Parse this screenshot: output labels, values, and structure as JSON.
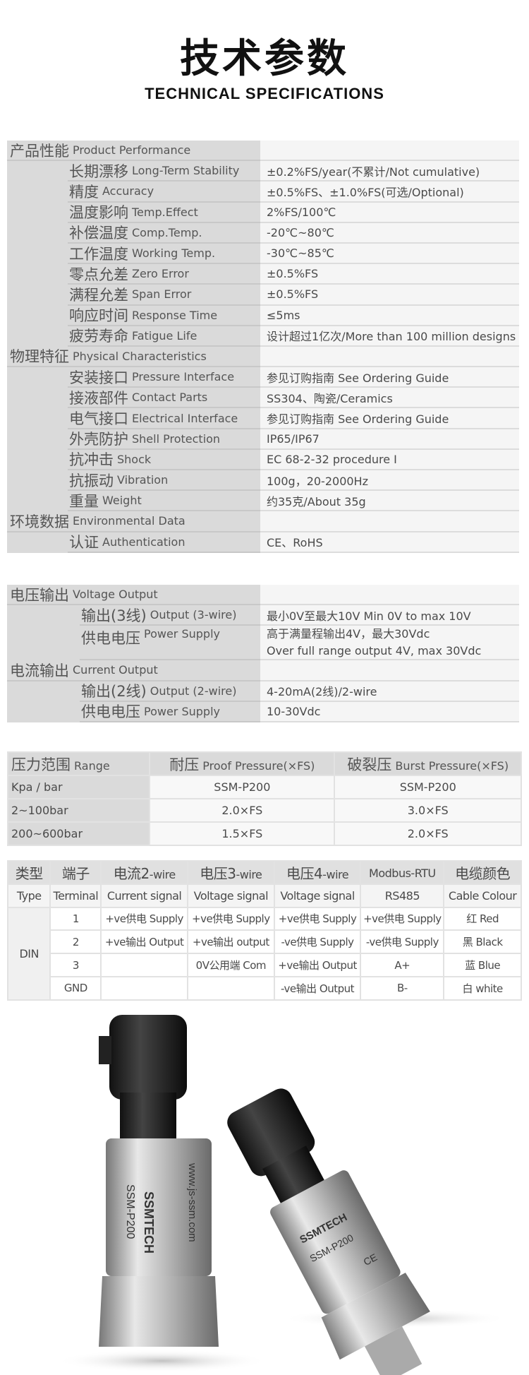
{
  "header": {
    "title": "技术参数",
    "subtitle": "TECHNICAL SPECIFICATIONS"
  },
  "spec": [
    {
      "type": "sec",
      "cn": "产品性能",
      "en": "Product Performance",
      "value": ""
    },
    {
      "type": "sub",
      "cn": "长期漂移",
      "en": "Long-Term Stability",
      "value": "±0.2%FS/year(不累计/Not cumulative)"
    },
    {
      "type": "sub",
      "cn": "精度",
      "en": "Accuracy",
      "value": "±0.5%FS、±1.0%FS(可选/Optional)"
    },
    {
      "type": "sub",
      "cn": "温度影响",
      "en": "Temp.Effect",
      "value": "2%FS/100℃"
    },
    {
      "type": "sub",
      "cn": "补偿温度",
      "en": "Comp.Temp.",
      "value": "-20℃~80℃"
    },
    {
      "type": "sub",
      "cn": "工作温度",
      "en": "Working Temp.",
      "value": "-30℃~85℃"
    },
    {
      "type": "sub",
      "cn": "零点允差",
      "en": "Zero Error",
      "value": "±0.5%FS"
    },
    {
      "type": "sub",
      "cn": "满程允差",
      "en": "Span Error",
      "value": "±0.5%FS"
    },
    {
      "type": "sub",
      "cn": "响应时间",
      "en": "Response Time",
      "value": "≤5ms"
    },
    {
      "type": "sub",
      "cn": "疲劳寿命",
      "en": "Fatigue Life",
      "value": "设计超过1亿次/More than 100 million designs"
    },
    {
      "type": "sec",
      "cn": "物理特征",
      "en": "Physical Characteristics",
      "value": ""
    },
    {
      "type": "sub",
      "cn": "安装接口",
      "en": "Pressure Interface",
      "value": "参见订购指南 See Ordering Guide"
    },
    {
      "type": "sub",
      "cn": "接液部件",
      "en": "Contact Parts",
      "value": "SS304、陶瓷/Ceramics"
    },
    {
      "type": "sub",
      "cn": "电气接口",
      "en": "Electrical Interface",
      "value": "参见订购指南 See Ordering Guide"
    },
    {
      "type": "sub",
      "cn": "外壳防护",
      "en": "Shell Protection",
      "value": "IP65/IP67"
    },
    {
      "type": "sub",
      "cn": "抗冲击",
      "en": "Shock",
      "value": "EC 68-2-32 procedure I"
    },
    {
      "type": "sub",
      "cn": "抗振动",
      "en": "Vibration",
      "value": "100g，20-2000Hz"
    },
    {
      "type": "sub",
      "cn": "重量",
      "en": "Weight",
      "value": "约35克/About 35g"
    },
    {
      "type": "sec",
      "cn": "环境数据",
      "en": "Environmental Data",
      "value": ""
    },
    {
      "type": "sub",
      "cn": "认证",
      "en": "Authentication",
      "value": "CE、RoHS"
    }
  ],
  "output": [
    {
      "type": "sec",
      "cn": "电压输出",
      "en": "Voltage Output",
      "value": ""
    },
    {
      "type": "sub",
      "cn": "输出(3线)",
      "en": "Output (3-wire)",
      "value": "最小0V至最大10V Min 0V to max 10V"
    },
    {
      "type": "sub tall",
      "cn": "供电电压",
      "en": "Power Supply",
      "value": "高于满量程输出4V，最大30Vdc",
      "value2": "Over full range output 4V, max 30Vdc"
    },
    {
      "type": "sec",
      "cn": "电流输出",
      "en": "Current Output",
      "value": ""
    },
    {
      "type": "sub",
      "cn": "输出(2线)",
      "en": "Output (2-wire)",
      "value": "4-20mA(2线)/2-wire"
    },
    {
      "type": "sub",
      "cn": "供电电压",
      "en": "Power Supply",
      "value": "10-30Vdc"
    }
  ],
  "pressure": {
    "header": [
      {
        "cn": "压力范围",
        "en": "Range"
      },
      {
        "cn": "耐压",
        "en": "Proof Pressure(×FS)"
      },
      {
        "cn": "破裂压",
        "en": "Burst Pressure(×FS)"
      }
    ],
    "rows": [
      [
        "Kpa / bar",
        "SSM-P200",
        "SSM-P200"
      ],
      [
        "2~100bar",
        "2.0×FS",
        "3.0×FS"
      ],
      [
        "200~600bar",
        "1.5×FS",
        "2.0×FS"
      ]
    ]
  },
  "wiring": {
    "header": [
      {
        "cn": "类型",
        "w": ""
      },
      {
        "cn": "端子",
        "w": ""
      },
      {
        "cn": "电流2",
        "w": "-wire"
      },
      {
        "cn": "电压3",
        "w": "-wire"
      },
      {
        "cn": "电压4",
        "w": "-wire"
      },
      {
        "cn": "",
        "w": "Modbus-RTU"
      },
      {
        "cn": "电缆颜色",
        "w": ""
      }
    ],
    "subheader": [
      "Type",
      "Terminal",
      "Current signal",
      "Voltage signal",
      "Voltage signal",
      "RS485",
      "Cable Colour"
    ],
    "type": "DIN",
    "rows": [
      [
        "1",
        "+ve供电 Supply",
        "+ve供电 Supply",
        "+ve供电 Supply",
        "+ve供电 Supply",
        "红 Red"
      ],
      [
        "2",
        "+ve输出 Output",
        "+ve输出 output",
        "-ve供电 Supply",
        "-ve供电 Supply",
        "黑 Black"
      ],
      [
        "3",
        "",
        "0V公用端 Com",
        "+ve输出 Output",
        "A+",
        "蓝 Blue"
      ],
      [
        "GND",
        "",
        "",
        "-ve输出 Output",
        "B-",
        "白 white"
      ]
    ]
  },
  "product": {
    "model": "SSM-P200",
    "brand": "SSMTECH",
    "url": "www.js-ssm.com",
    "mark": "CE"
  }
}
